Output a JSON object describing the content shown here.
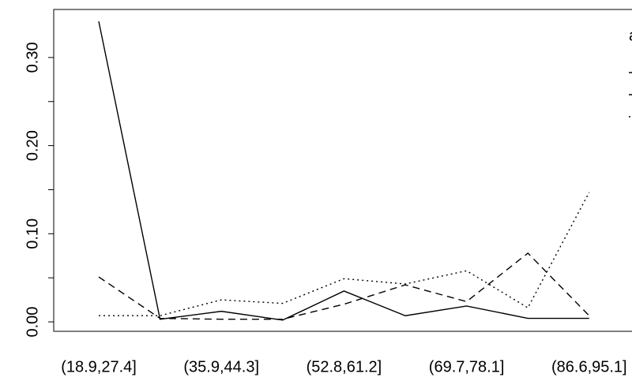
{
  "chart_data": {
    "type": "line",
    "categories": [
      "(18.9,27.4]",
      null,
      "(35.9,44.3]",
      null,
      "(52.8,61.2]",
      null,
      "(69.7,78.1]",
      null,
      "(86.6,95.1]"
    ],
    "series": [
      {
        "color": "#000000",
        "dash": "solid",
        "values": [
          0.341,
          0.003,
          0.012,
          0.002,
          0.035,
          0.007,
          0.018,
          0.004,
          0.004
        ]
      },
      {
        "color": "#000000",
        "dash": "dashed",
        "values": [
          0.051,
          0.004,
          0.003,
          0.003,
          0.02,
          0.042,
          0.023,
          0.078,
          0.007
        ]
      },
      {
        "color": "#000000",
        "dash": "dotted",
        "values": [
          0.007,
          0.007,
          0.025,
          0.021,
          0.049,
          0.043,
          0.058,
          0.016,
          0.147
        ]
      }
    ],
    "ylim": [
      -0.0107,
      0.3545
    ],
    "yticks": [
      {
        "value": 0,
        "label": "0.00"
      },
      {
        "value": 0.1,
        "label": "0.10"
      },
      {
        "value": 0.2,
        "label": "0.20"
      },
      {
        "value": 0.3,
        "label": "0.30"
      }
    ],
    "yminor_ticks": [
      0.05,
      0.15,
      0.25
    ],
    "legend_title": "a",
    "legend": "top-right",
    "grid": false
  }
}
